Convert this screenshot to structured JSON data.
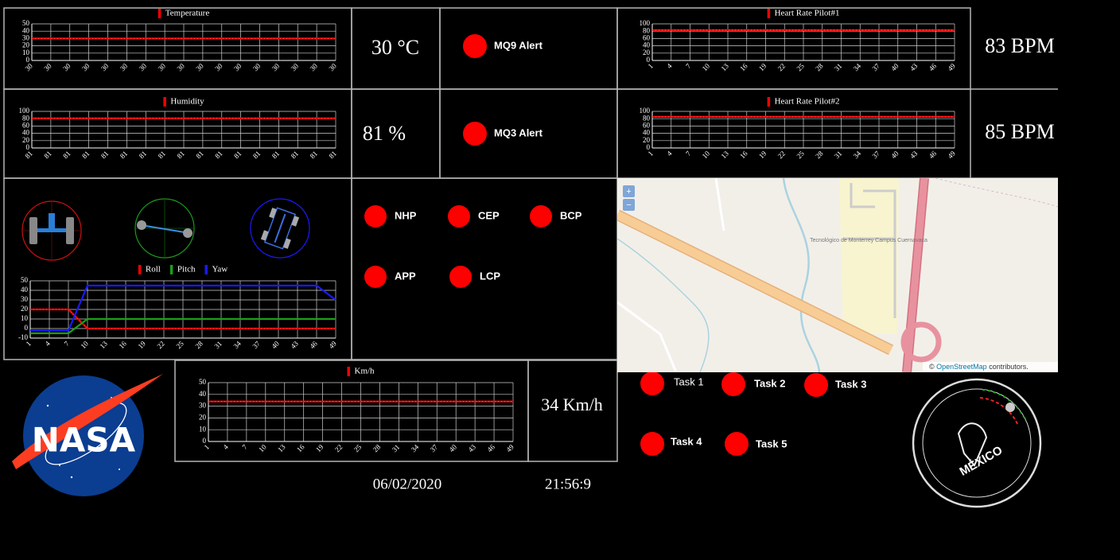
{
  "chart_data": [
    {
      "type": "line",
      "categories": [
        "30",
        "30",
        "30",
        "30",
        "30",
        "30",
        "30",
        "30",
        "30",
        "30",
        "30",
        "30",
        "30",
        "30",
        "30",
        "30",
        "30"
      ],
      "series": [
        {
          "name": "Temperature",
          "color": "#ff0000",
          "values": [
            30,
            30,
            30,
            30,
            30,
            30,
            30,
            30,
            30,
            30,
            30,
            30,
            30,
            30,
            30,
            30,
            30
          ]
        }
      ],
      "ylim": [
        0,
        50
      ],
      "yticks": [
        0,
        10,
        20,
        30,
        40,
        50
      ],
      "grid": true
    },
    {
      "type": "line",
      "categories": [
        "81",
        "81",
        "81",
        "81",
        "81",
        "81",
        "81",
        "81",
        "81",
        "81",
        "81",
        "81",
        "81",
        "81",
        "81",
        "81",
        "81"
      ],
      "series": [
        {
          "name": "Humidity",
          "color": "#ff0000",
          "values": [
            81,
            81,
            81,
            81,
            81,
            81,
            81,
            81,
            81,
            81,
            81,
            81,
            81,
            81,
            81,
            81,
            81
          ]
        }
      ],
      "ylim": [
        0,
        100
      ],
      "yticks": [
        0,
        20,
        40,
        60,
        80,
        100
      ],
      "grid": true
    },
    {
      "type": "line",
      "x": [
        1,
        4,
        7,
        10,
        13,
        16,
        19,
        22,
        25,
        28,
        31,
        34,
        37,
        40,
        43,
        46,
        49
      ],
      "xlim": [
        1,
        49
      ],
      "xticks": [
        1,
        4,
        7,
        10,
        13,
        16,
        19,
        22,
        25,
        28,
        31,
        34,
        37,
        40,
        43,
        46,
        49
      ],
      "series": [
        {
          "name": "Heart Rate Pilot#1",
          "color": "#ff0000",
          "values": [
            83,
            83,
            83,
            83,
            83,
            83,
            83,
            83,
            83,
            83,
            83,
            83,
            83,
            83,
            83,
            83,
            83
          ]
        }
      ],
      "ylim": [
        0,
        100
      ],
      "yticks": [
        0,
        20,
        40,
        60,
        80,
        100
      ],
      "grid": true
    },
    {
      "type": "line",
      "x": [
        1,
        4,
        7,
        10,
        13,
        16,
        19,
        22,
        25,
        28,
        31,
        34,
        37,
        40,
        43,
        46,
        49
      ],
      "xlim": [
        1,
        49
      ],
      "xticks": [
        1,
        4,
        7,
        10,
        13,
        16,
        19,
        22,
        25,
        28,
        31,
        34,
        37,
        40,
        43,
        46,
        49
      ],
      "series": [
        {
          "name": "Heart Rate Pilot#2",
          "color": "#ff0000",
          "values": [
            85,
            85,
            85,
            85,
            85,
            85,
            85,
            85,
            85,
            85,
            85,
            85,
            85,
            85,
            85,
            85,
            85
          ]
        }
      ],
      "ylim": [
        0,
        100
      ],
      "yticks": [
        0,
        20,
        40,
        60,
        80,
        100
      ],
      "grid": true
    },
    {
      "type": "line",
      "x": [
        1,
        4,
        7,
        10,
        13,
        16,
        19,
        22,
        25,
        28,
        31,
        34,
        37,
        40,
        43,
        46,
        49
      ],
      "xlim": [
        1,
        49
      ],
      "xticks": [
        1,
        4,
        7,
        10,
        13,
        16,
        19,
        22,
        25,
        28,
        31,
        34,
        37,
        40,
        43,
        46,
        49
      ],
      "series": [
        {
          "name": "Roll",
          "color": "#ff0000",
          "values": [
            20,
            20,
            20,
            0,
            0,
            0,
            0,
            0,
            0,
            0,
            0,
            0,
            0,
            0,
            0,
            0,
            0
          ]
        },
        {
          "name": "Pitch",
          "color": "#18a018",
          "values": [
            -5,
            -5,
            -5,
            10,
            10,
            10,
            10,
            10,
            10,
            10,
            10,
            10,
            10,
            10,
            10,
            10,
            10
          ]
        },
        {
          "name": "Yaw",
          "color": "#1a1aff",
          "values": [
            -2,
            -2,
            -2,
            45,
            45,
            45,
            45,
            45,
            45,
            45,
            45,
            45,
            45,
            45,
            45,
            45,
            30
          ]
        }
      ],
      "ylim": [
        -10,
        50
      ],
      "yticks": [
        -10,
        0,
        10,
        20,
        30,
        40,
        50
      ],
      "grid": true
    },
    {
      "type": "line",
      "x": [
        1,
        4,
        7,
        10,
        13,
        16,
        19,
        22,
        25,
        28,
        31,
        34,
        37,
        40,
        43,
        46,
        49
      ],
      "xlim": [
        1,
        49
      ],
      "xticks": [
        1,
        4,
        7,
        10,
        13,
        16,
        19,
        22,
        25,
        28,
        31,
        34,
        37,
        40,
        43,
        46,
        49
      ],
      "series": [
        {
          "name": "Km/h",
          "color": "#ff0000",
          "values": [
            34,
            34,
            34,
            34,
            34,
            34,
            34,
            34,
            34,
            34,
            34,
            34,
            34,
            34,
            34,
            34,
            34
          ]
        }
      ],
      "ylim": [
        0,
        50
      ],
      "yticks": [
        0,
        10,
        20,
        30,
        40,
        50
      ],
      "grid": true
    }
  ],
  "readouts": {
    "temperature": "30 °C",
    "humidity": "81 %",
    "heart_rate_1": "83 BPM",
    "heart_rate_2": "85 BPM",
    "speed": "34 Km/h"
  },
  "alerts": [
    "MQ9 Alert",
    "MQ3 Alert"
  ],
  "indicators": [
    "NHP",
    "CEP",
    "BCP",
    "APP",
    "LCP"
  ],
  "tasks": [
    "Task 1",
    "Task 2",
    "Task 3",
    "Task 4",
    "Task 5"
  ],
  "map": {
    "zoom_in": "+",
    "zoom_out": "−",
    "place": "Tecnológico de Monterrey Campus Cuernavaca",
    "attribution_prefix": "©",
    "attribution_link": "OpenStreetMap",
    "attribution_suffix": "contributors."
  },
  "logos": {
    "nasa": "NASA",
    "mexico": "MÉXICO"
  },
  "date": "06/02/2020",
  "time": "21:56:9"
}
